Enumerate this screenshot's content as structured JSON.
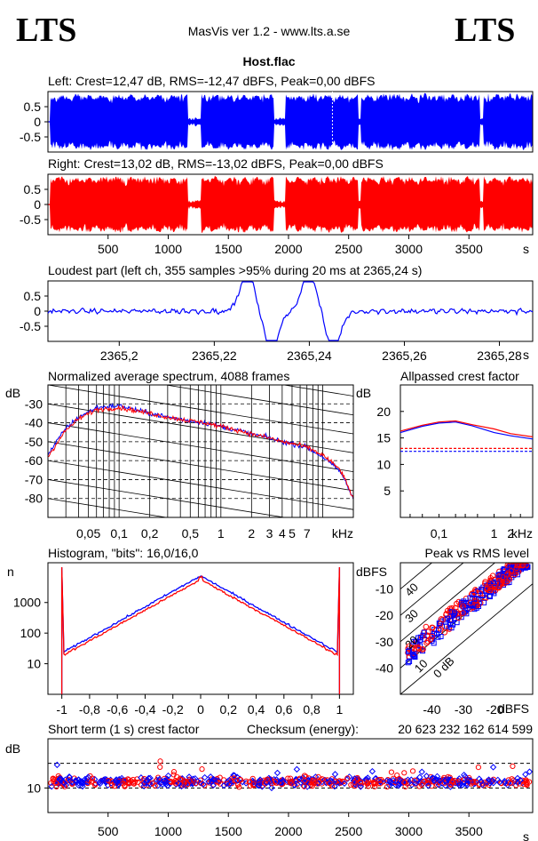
{
  "header": {
    "logo_left": "LTS",
    "logo_right": "LTS",
    "app_title": "MasVis ver 1.2 - www.lts.a.se",
    "file_name": "Host.flac"
  },
  "colors": {
    "left": "#0000ff",
    "right": "#ff0000",
    "frame": "#000000",
    "grid": "#000000"
  },
  "chart_data": [
    {
      "id": "left-waveform",
      "type": "area",
      "title": "Left: Crest=12,47 dB, RMS=-12,47 dBFS, Peak=0,00 dBFS",
      "series": [
        {
          "name": "Left",
          "color": "#0000ff"
        }
      ],
      "ylim": [
        -1,
        1
      ],
      "yticks": [
        "0.5",
        "0",
        "-0.5"
      ],
      "xlim": [
        0,
        4030
      ],
      "marker_x": 2365.24,
      "quiet_segments_s": [
        [
          1165,
          1270
        ],
        [
          1880,
          1975
        ],
        [
          2580,
          2605
        ],
        [
          3590,
          3620
        ]
      ]
    },
    {
      "id": "right-waveform",
      "type": "area",
      "title": "Right: Crest=13,02 dB, RMS=-13,02 dBFS, Peak=0,00 dBFS",
      "series": [
        {
          "name": "Right",
          "color": "#ff0000"
        }
      ],
      "ylim": [
        -1,
        1
      ],
      "yticks": [
        "0.5",
        "0",
        "-0.5"
      ],
      "xlim": [
        0,
        4030
      ],
      "xticks": [
        "500",
        "1000",
        "1500",
        "2000",
        "2500",
        "3000",
        "3500"
      ],
      "x_unit": "s"
    },
    {
      "id": "loudest-part",
      "type": "line",
      "title": "Loudest part (left  ch, 355 samples >95% during 20 ms at 2365,24 s)",
      "series": [
        {
          "name": "Left",
          "color": "#0000ff"
        }
      ],
      "ylim": [
        -1,
        1
      ],
      "yticks": [
        "0.5",
        "0",
        "-0.5"
      ],
      "xlim": [
        2365.185,
        2365.287
      ],
      "xticks": [
        "2365,2",
        "2365,22",
        "2365,24",
        "2365,26",
        "2365,28"
      ],
      "x_unit": "s",
      "peaks_s": [
        2365.227,
        2365.24
      ],
      "troughs_s": [
        2365.232,
        2365.245
      ]
    },
    {
      "id": "normalized-spectrum",
      "type": "line",
      "title": "Normalized average spectrum, 4088 frames",
      "y_unit": "dB",
      "ylim": [
        -90,
        -20
      ],
      "yticks": [
        "-30",
        "-40",
        "-50",
        "-60",
        "-70",
        "-80"
      ],
      "xscale": "log",
      "xlim_khz": [
        0.02,
        20
      ],
      "xticks": [
        "0,05",
        "0,1",
        "0,2",
        "0,5",
        "1",
        "2",
        "3",
        "4",
        "5",
        "7"
      ],
      "x_unit": "kHz",
      "series": [
        {
          "name": "Left",
          "color": "#0000ff",
          "points": [
            [
              0.02,
              -57
            ],
            [
              0.025,
              -49
            ],
            [
              0.03,
              -43
            ],
            [
              0.04,
              -37
            ],
            [
              0.06,
              -32
            ],
            [
              0.1,
              -31
            ],
            [
              0.2,
              -35
            ],
            [
              0.3,
              -37
            ],
            [
              0.5,
              -39
            ],
            [
              0.7,
              -40
            ],
            [
              1,
              -42
            ],
            [
              1.5,
              -44
            ],
            [
              2,
              -46
            ],
            [
              3,
              -48
            ],
            [
              4,
              -50
            ],
            [
              5,
              -51
            ],
            [
              7,
              -53
            ],
            [
              10,
              -58
            ],
            [
              15,
              -66
            ],
            [
              20,
              -80
            ]
          ]
        },
        {
          "name": "Right",
          "color": "#ff0000",
          "points": [
            [
              0.02,
              -58
            ],
            [
              0.025,
              -50
            ],
            [
              0.03,
              -44
            ],
            [
              0.04,
              -38
            ],
            [
              0.06,
              -33
            ],
            [
              0.1,
              -32
            ],
            [
              0.2,
              -35
            ],
            [
              0.3,
              -37
            ],
            [
              0.5,
              -39
            ],
            [
              0.7,
              -40
            ],
            [
              1,
              -42
            ],
            [
              1.5,
              -44
            ],
            [
              2,
              -46
            ],
            [
              3,
              -48
            ],
            [
              4,
              -50
            ],
            [
              5,
              -51
            ],
            [
              7,
              -53
            ],
            [
              10,
              -57
            ],
            [
              15,
              -65
            ],
            [
              20,
              -80
            ]
          ]
        }
      ]
    },
    {
      "id": "allpassed-crest",
      "type": "line",
      "title": "Allpassed crest factor",
      "y_unit": "dB",
      "ylim": [
        0,
        25
      ],
      "yticks": [
        "20",
        "15",
        "10",
        "5"
      ],
      "xscale": "log",
      "xlim_khz": [
        0.02,
        5
      ],
      "xticks": [
        "0,1",
        "1",
        "2"
      ],
      "x_unit": "kHz",
      "reference_levels_db": {
        "Left": 12.47,
        "Right": 13.02
      },
      "series": [
        {
          "name": "Left",
          "color": "#0000ff",
          "points": [
            [
              0.02,
              16
            ],
            [
              0.05,
              17.2
            ],
            [
              0.1,
              17.8
            ],
            [
              0.2,
              18
            ],
            [
              0.4,
              17.3
            ],
            [
              1,
              16
            ],
            [
              2,
              15.4
            ],
            [
              5,
              14.8
            ]
          ]
        },
        {
          "name": "Right",
          "color": "#ff0000",
          "points": [
            [
              0.02,
              16.3
            ],
            [
              0.05,
              17.4
            ],
            [
              0.1,
              18
            ],
            [
              0.2,
              18.2
            ],
            [
              0.4,
              17.5
            ],
            [
              1,
              16.7
            ],
            [
              2,
              15.8
            ],
            [
              5,
              15.2
            ]
          ]
        }
      ]
    },
    {
      "id": "histogram",
      "type": "line",
      "title": "Histogram, \"bits\": 16,0/16,0",
      "y_unit": "n",
      "yscale": "log",
      "yticks": [
        "1000",
        "100",
        "10"
      ],
      "xlim": [
        -1.1,
        1.1
      ],
      "xticks": [
        "-1",
        "-0,8",
        "-0,6",
        "-0,4",
        "-0,2",
        "0",
        "0,2",
        "0,4",
        "0,6",
        "0,8",
        "1"
      ],
      "series": [
        {
          "name": "Left",
          "color": "#0000ff"
        },
        {
          "name": "Right",
          "color": "#ff0000"
        }
      ]
    },
    {
      "id": "peak-vs-rms",
      "type": "scatter",
      "title": "Peak vs RMS level",
      "y_unit": "dBFS",
      "x_unit": "dBFS",
      "xlim": [
        -50,
        -8
      ],
      "ylim": [
        -50,
        0
      ],
      "xticks": [
        "-40",
        "-30",
        "-20"
      ],
      "yticks": [
        "-10",
        "-20",
        "-30",
        "-40"
      ],
      "diagonal_labels": [
        "40",
        "30",
        "20",
        "10",
        "0 dB"
      ],
      "series": [
        {
          "name": "Left",
          "color": "#0000ff",
          "marker": "square"
        },
        {
          "name": "Right",
          "color": "#ff0000",
          "marker": "circle"
        }
      ]
    },
    {
      "id": "short-term-crest",
      "type": "scatter",
      "title": "Short term (1 s) crest factor",
      "checksum_label": "Checksum (energy):",
      "checksum_value": "20 623 232 162 614 599",
      "y_unit": "dB",
      "yticks": [
        "10"
      ],
      "xlim": [
        0,
        4030
      ],
      "xticks": [
        "500",
        "1000",
        "1500",
        "2000",
        "2500",
        "3000",
        "3500"
      ],
      "x_unit": "s",
      "reference_levels_db": [
        10,
        20
      ],
      "series": [
        {
          "name": "Left",
          "color": "#0000ff",
          "marker": "diamond"
        },
        {
          "name": "Right",
          "color": "#ff0000",
          "marker": "circle"
        }
      ]
    }
  ]
}
